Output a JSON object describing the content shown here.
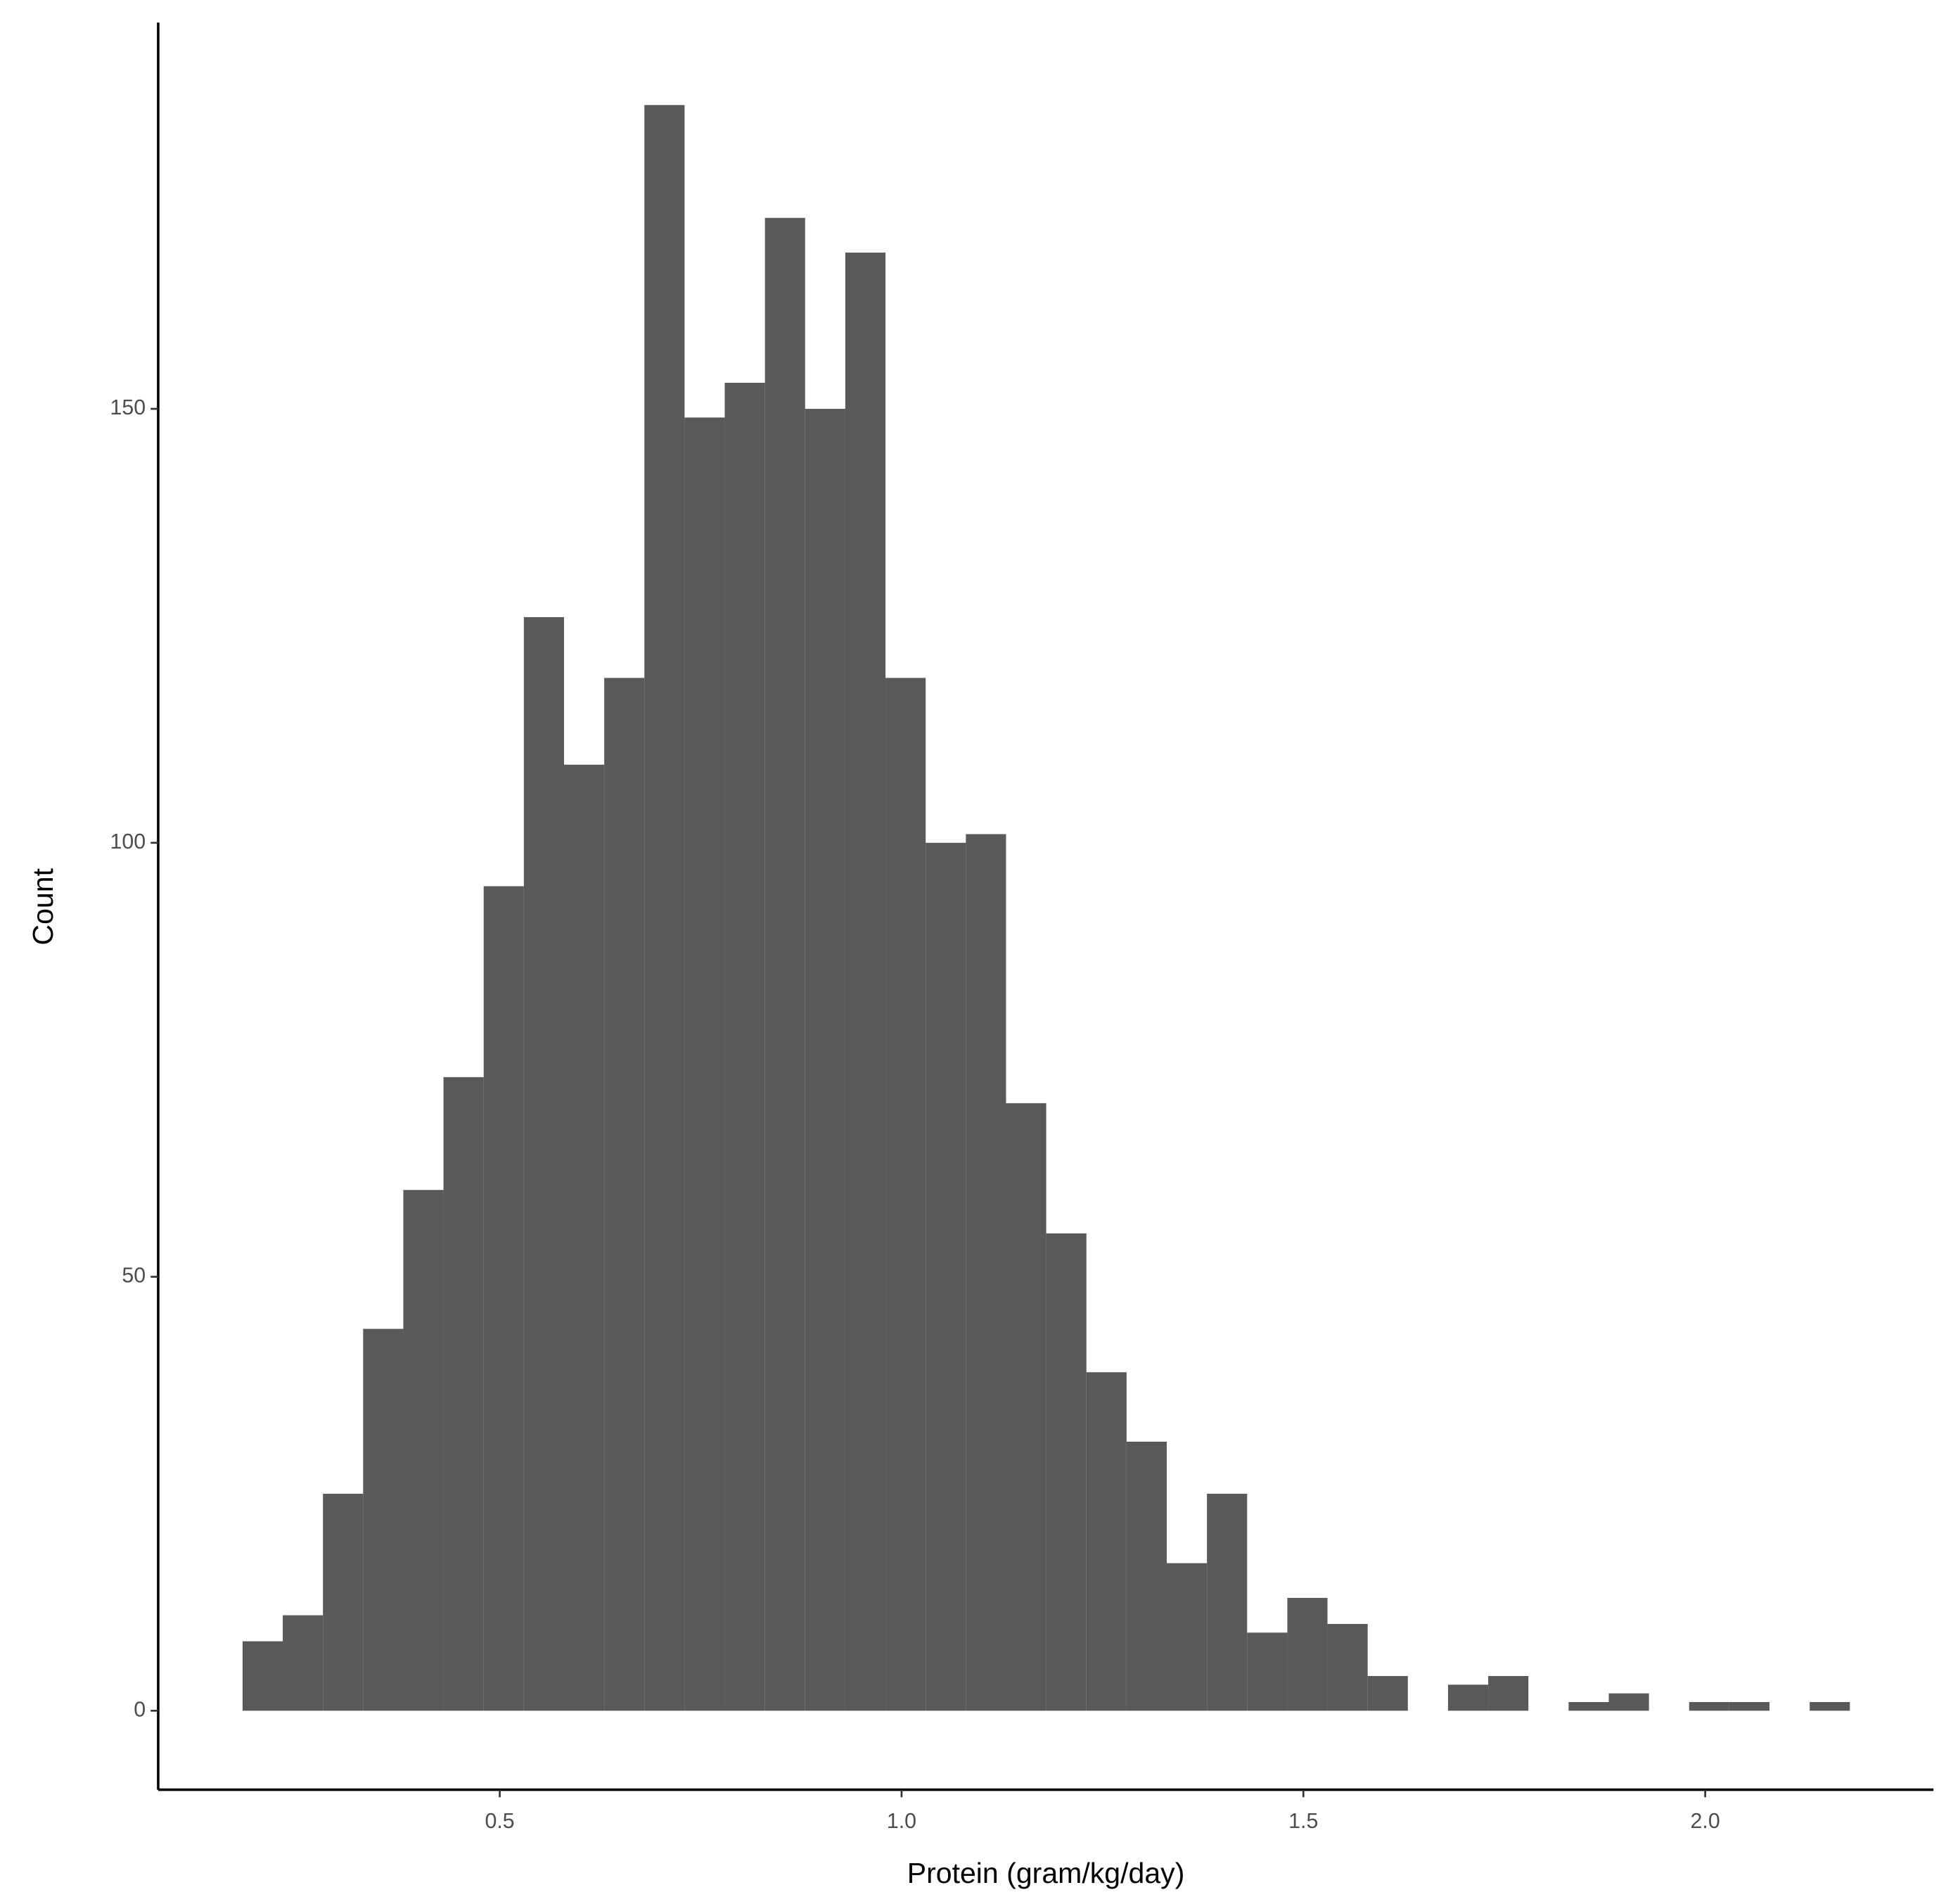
{
  "chart_data": {
    "type": "histogram",
    "x_label": "Protein (gram/kg/day)",
    "y_label": "Count",
    "bins": [
      0.18,
      0.23,
      0.28,
      0.33,
      0.38,
      0.43,
      0.48,
      0.53,
      0.58,
      0.63,
      0.68,
      0.73,
      0.78,
      0.83,
      0.88,
      0.93,
      0.98,
      1.03,
      1.08,
      1.13,
      1.18,
      1.23,
      1.28,
      1.33,
      1.38,
      1.43,
      1.48,
      1.53,
      1.58,
      1.63,
      1.68,
      1.73,
      1.78,
      1.83,
      1.88,
      1.93,
      1.98,
      2.03,
      2.08,
      2.13,
      2.18
    ],
    "values": [
      8,
      11,
      25,
      44,
      60,
      73,
      95,
      126,
      109,
      119,
      185,
      149,
      153,
      172,
      150,
      168,
      119,
      100,
      101,
      70,
      55,
      39,
      31,
      17,
      25,
      9,
      13,
      10,
      4,
      0,
      3,
      4,
      0,
      1,
      2,
      0,
      1,
      1,
      0,
      1
    ],
    "color": "#595959",
    "xlim": [
      0.075,
      2.284
    ],
    "ylim": [
      -9.1,
      194.5
    ],
    "xticks": [
      0.5,
      {
        "value": 1,
        "label": "1.0"
      },
      1.5,
      {
        "value": 2,
        "label": "2.0"
      }
    ],
    "yticks": [
      0,
      50,
      100,
      150
    ],
    "grid": false
  }
}
